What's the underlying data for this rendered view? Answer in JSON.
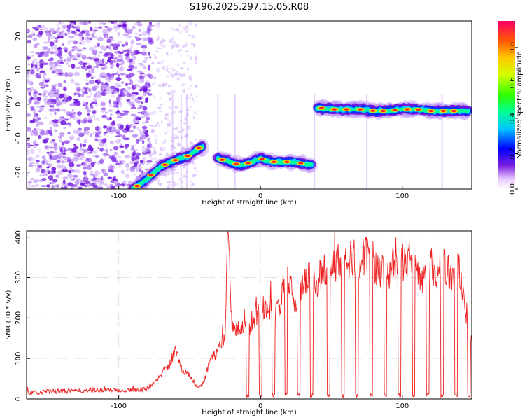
{
  "title": "S196.2025.297.15.05.R08",
  "chart_data": [
    {
      "type": "heatmap",
      "name": "spectrogram",
      "xlabel": "Height of straight line (km)",
      "ylabel": "Frequency (Hz)",
      "xlim": [
        -165,
        149
      ],
      "ylim": [
        -25,
        24.5
      ],
      "x_ticks": [
        -100,
        0,
        100
      ],
      "y_ticks": [
        -20,
        -10,
        0,
        10,
        20
      ],
      "colorbar": {
        "label": "Normalized spectral amplitude",
        "range": [
          0.0,
          0.95
        ],
        "ticks": [
          "0.0",
          "0.2",
          "0.4",
          "0.6",
          "0.8"
        ]
      },
      "ridge_segments": [
        {
          "x": [
            -90,
            -80,
            -72,
            -64,
            -56,
            -50,
            -44,
            -40
          ],
          "y": [
            -25,
            -22,
            -19,
            -17,
            -16,
            -15,
            -13,
            -12.5
          ]
        },
        {
          "x": [
            -30,
            -22,
            -14,
            -6,
            0,
            8,
            16,
            24,
            30,
            36
          ],
          "y": [
            -16,
            -17,
            -18,
            -17,
            -16,
            -17,
            -17,
            -17,
            -17.5,
            -18
          ]
        },
        {
          "x": [
            40,
            50,
            60,
            70,
            80,
            90,
            100,
            110,
            120,
            130,
            140,
            147
          ],
          "y": [
            -1,
            -1.5,
            -1.5,
            -1.5,
            -2,
            -2,
            -1.5,
            -1.5,
            -2,
            -2,
            -2,
            -2
          ]
        }
      ]
    },
    {
      "type": "line",
      "name": "snr",
      "xlabel": "Height of straight line (km)",
      "ylabel": "SNR (10 * v/v)",
      "xlim": [
        -165,
        149
      ],
      "ylim": [
        0,
        415
      ],
      "x_ticks": [
        -100,
        0,
        100
      ],
      "y_ticks": [
        0,
        100,
        200,
        300,
        400
      ],
      "series": [
        {
          "name": "SNR",
          "color": "#ee2222",
          "x": [
            -165,
            -150,
            -130,
            -110,
            -90,
            -80,
            -75,
            -70,
            -65,
            -60,
            -55,
            -50,
            -45,
            -40,
            -35,
            -30,
            -25,
            -23,
            -20,
            -15,
            -10,
            -5,
            0,
            5,
            10,
            15,
            20,
            25,
            30,
            35,
            40,
            45,
            50,
            55,
            60,
            65,
            70,
            75,
            80,
            85,
            90,
            95,
            100,
            105,
            110,
            115,
            120,
            125,
            130,
            135,
            140,
            145,
            149
          ],
          "y": [
            15,
            18,
            20,
            22,
            22,
            25,
            40,
            60,
            80,
            120,
            70,
            60,
            30,
            40,
            100,
            120,
            160,
            410,
            180,
            180,
            170,
            200,
            220,
            230,
            210,
            250,
            300,
            220,
            280,
            300,
            290,
            320,
            330,
            340,
            330,
            350,
            340,
            360,
            330,
            320,
            300,
            340,
            340,
            330,
            320,
            300,
            330,
            310,
            330,
            300,
            320,
            200,
            150
          ]
        }
      ],
      "dropout_centers": [
        -9,
        0,
        9,
        18,
        27,
        36,
        48,
        58,
        68,
        78,
        88,
        98,
        108,
        118,
        128,
        138,
        147
      ]
    }
  ]
}
